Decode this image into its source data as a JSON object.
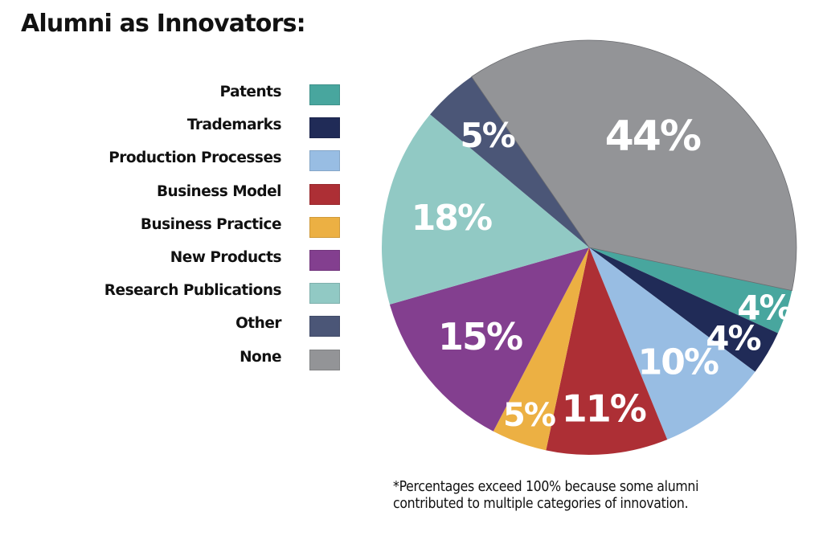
{
  "chart_data": {
    "type": "pie",
    "title": "Alumni as Innovators:",
    "unit": "%",
    "note": "Percentages sum to 116; slices drawn proportionally, clockwise starting just below the 3 o'clock position",
    "legend_position": "left",
    "slices": [
      {
        "label": "Patents",
        "value": 4,
        "display": "4%",
        "color": "#48a69e"
      },
      {
        "label": "Trademarks",
        "value": 4,
        "display": "4%",
        "color": "#202b57"
      },
      {
        "label": "Production Processes",
        "value": 10,
        "display": "10%",
        "color": "#98bde3"
      },
      {
        "label": "Business Model",
        "value": 11,
        "display": "11%",
        "color": "#ad2f35"
      },
      {
        "label": "Business Practice",
        "value": 5,
        "display": "5%",
        "color": "#ecb043"
      },
      {
        "label": "New Products",
        "value": 15,
        "display": "15%",
        "color": "#833f8f"
      },
      {
        "label": "Research Publications",
        "value": 18,
        "display": "18%",
        "color": "#91c9c4"
      },
      {
        "label": "Other",
        "value": 5,
        "display": "5%",
        "color": "#4b5677"
      },
      {
        "label": "None",
        "value": 44,
        "display": "44%",
        "color": "#939497"
      }
    ]
  },
  "footnote": {
    "line1": "*Percentages exceed 100% because some alumni",
    "line2": "contributed to multiple categories of innovation."
  }
}
